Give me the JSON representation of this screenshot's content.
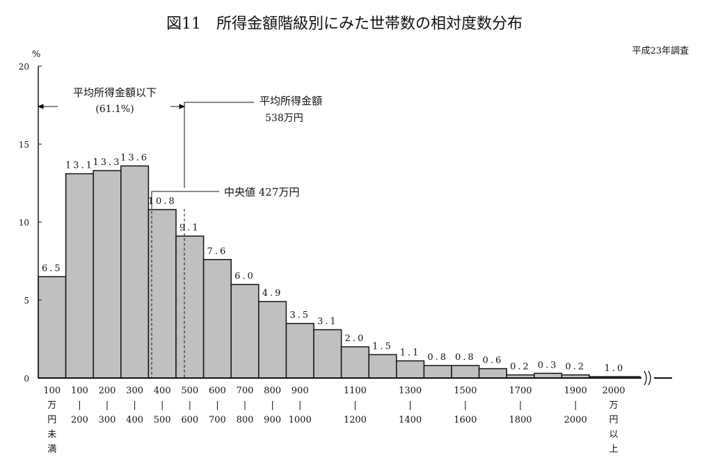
{
  "chart_data": {
    "type": "bar",
    "title": "図11　所得金額階級別にみた世帯数の相対度数分布",
    "subtitle": "平成23年調査",
    "ylabel": "%",
    "ylim": [
      0,
      20
    ],
    "yticks": [
      0,
      5,
      10,
      15,
      20
    ],
    "categories": [
      "100万円未満",
      "100-200",
      "200-300",
      "300-400",
      "400-500",
      "500-600",
      "600-700",
      "700-800",
      "800-900",
      "900-1000",
      "1000-1100",
      "1100-1200",
      "1200-1300",
      "1300-1400",
      "1400-1500",
      "1500-1600",
      "1600-1700",
      "1700-1800",
      "1800-1900",
      "1900-2000",
      "2000万円以上"
    ],
    "values": [
      6.5,
      13.1,
      13.3,
      13.6,
      10.8,
      9.1,
      7.6,
      6.0,
      4.9,
      3.5,
      3.1,
      2.0,
      1.5,
      1.1,
      0.8,
      0.8,
      0.6,
      0.2,
      0.3,
      0.2,
      1.0
    ],
    "value_labels": [
      "6.5",
      "13.1",
      "13.3",
      "13.6",
      "10.8",
      "9.1",
      "7.6",
      "6.0",
      "4.9",
      "3.5",
      "3.1",
      "2.0",
      "1.5",
      "1.1",
      "0.8",
      "0.8",
      "0.6",
      "0.2",
      "0.3",
      "0.2",
      "1.0"
    ],
    "xtick_labels": [
      {
        "bar": 0,
        "top": "100",
        "sep": "",
        "lines": [
          "万",
          "円",
          "未",
          "満"
        ]
      },
      {
        "bar": 1,
        "top": "100",
        "sep": "|",
        "lines": [
          "200"
        ]
      },
      {
        "bar": 2,
        "top": "200",
        "sep": "|",
        "lines": [
          "300"
        ]
      },
      {
        "bar": 3,
        "top": "300",
        "sep": "|",
        "lines": [
          "400"
        ]
      },
      {
        "bar": 4,
        "top": "400",
        "sep": "|",
        "lines": [
          "500"
        ]
      },
      {
        "bar": 5,
        "top": "500",
        "sep": "|",
        "lines": [
          "600"
        ]
      },
      {
        "bar": 6,
        "top": "600",
        "sep": "|",
        "lines": [
          "700"
        ]
      },
      {
        "bar": 7,
        "top": "700",
        "sep": "|",
        "lines": [
          "800"
        ]
      },
      {
        "bar": 8,
        "top": "800",
        "sep": "|",
        "lines": [
          "900"
        ]
      },
      {
        "bar": 9,
        "top": "900",
        "sep": "|",
        "lines": [
          "1000"
        ]
      },
      {
        "bar": 11,
        "top": "1100",
        "sep": "|",
        "lines": [
          "1200"
        ]
      },
      {
        "bar": 13,
        "top": "1300",
        "sep": "|",
        "lines": [
          "1400"
        ]
      },
      {
        "bar": 15,
        "top": "1500",
        "sep": "|",
        "lines": [
          "1600"
        ]
      },
      {
        "bar": 17,
        "top": "1700",
        "sep": "|",
        "lines": [
          "1800"
        ]
      },
      {
        "bar": 19,
        "top": "1900",
        "sep": "|",
        "lines": [
          "2000"
        ]
      },
      {
        "bar": 20,
        "top": "2000",
        "sep": "",
        "lines": [
          "万",
          "円",
          "以",
          "上"
        ]
      }
    ],
    "annotations": {
      "below_mean_label": "平均所得金額以下",
      "below_mean_pct": "(61.1%)",
      "mean_label": "平均所得金額",
      "mean_value_text": "538万円",
      "mean_value": 538,
      "median_label": "中央値 427万円",
      "median_value": 427
    },
    "bar_color": "#c0c0c0",
    "grid": false
  }
}
